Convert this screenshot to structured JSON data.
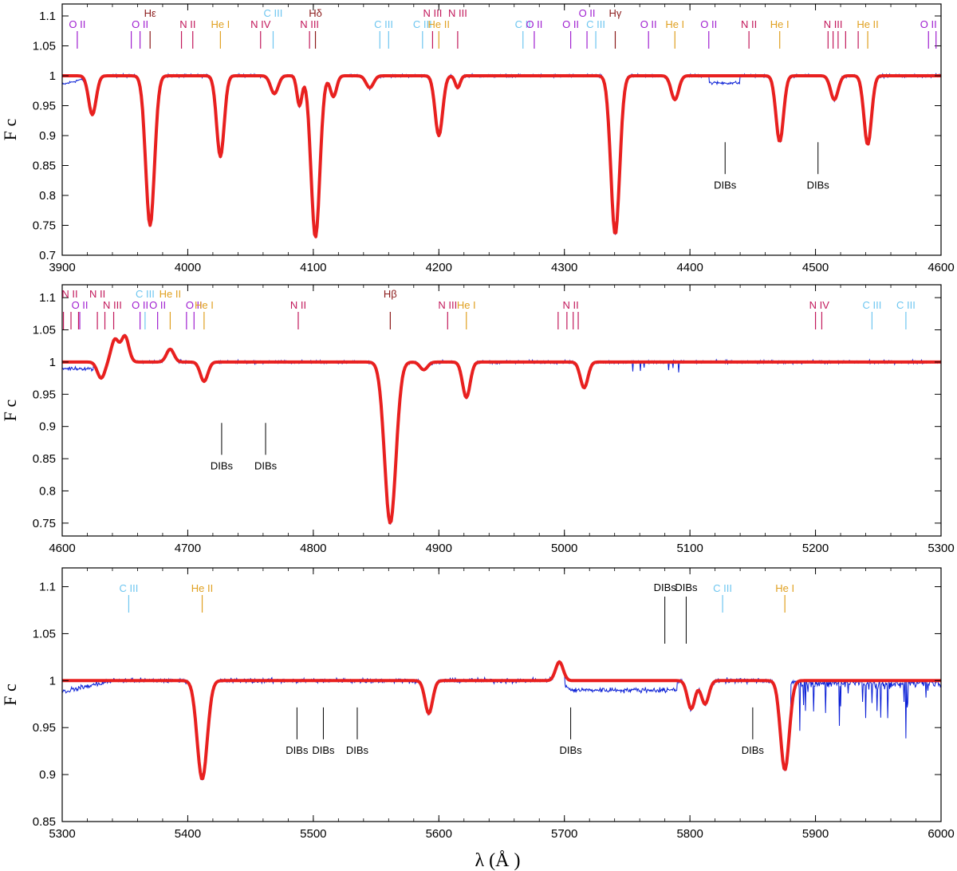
{
  "figure": {
    "xlabel": "λ (Å )",
    "ylabel": "F c",
    "colors": {
      "observed": "#0a1fd6",
      "model": "#e8201f",
      "frame": "#000000"
    }
  },
  "chart_data": [
    {
      "type": "line",
      "xlim": [
        3900,
        4600
      ],
      "ylim": [
        0.7,
        1.12
      ],
      "xticks": [
        3900,
        4000,
        4100,
        4200,
        4300,
        4400,
        4500,
        4600
      ],
      "yticks": [
        0.7,
        0.75,
        0.8,
        0.85,
        0.9,
        0.95,
        1,
        1.05,
        1.1
      ],
      "ylabel": "F c",
      "series": [
        {
          "name": "observed",
          "color": "#0a1fd6"
        },
        {
          "name": "model",
          "color": "#e8201f"
        }
      ],
      "lines": [
        {
          "center": 3924,
          "depth": 0.065,
          "width": 3
        },
        {
          "center": 3970,
          "depth": 0.25,
          "width": 3.5
        },
        {
          "center": 4026,
          "depth": 0.135,
          "width": 3
        },
        {
          "center": 4069,
          "depth": 0.03,
          "width": 3
        },
        {
          "center": 4089,
          "depth": 0.05,
          "width": 2
        },
        {
          "center": 4101.7,
          "depth": 0.27,
          "width": 3.5
        },
        {
          "center": 4116,
          "depth": 0.035,
          "width": 2.5
        },
        {
          "center": 4145,
          "depth": 0.02,
          "width": 3
        },
        {
          "center": 4200,
          "depth": 0.1,
          "width": 3
        },
        {
          "center": 4215,
          "depth": 0.02,
          "width": 2
        },
        {
          "center": 4340.5,
          "depth": 0.265,
          "width": 3.5
        },
        {
          "center": 4388,
          "depth": 0.04,
          "width": 3
        },
        {
          "center": 4471.5,
          "depth": 0.11,
          "width": 3
        },
        {
          "center": 4515,
          "depth": 0.04,
          "width": 3
        },
        {
          "center": 4541.6,
          "depth": 0.115,
          "width": 3
        }
      ],
      "ion_labels": [
        {
          "text": "O II",
          "x": 3912,
          "ticks": [
            3912
          ],
          "color": "#a020d0",
          "row": 1
        },
        {
          "text": "O II",
          "x": 3962,
          "ticks": [
            3955,
            3962
          ],
          "color": "#a020d0",
          "row": 1
        },
        {
          "text": "Hε",
          "x": 3970,
          "ticks": [
            3970
          ],
          "color": "#8b1a1a",
          "row": 0
        },
        {
          "text": "N II",
          "x": 4000,
          "ticks": [
            3995,
            4004
          ],
          "color": "#c2185b",
          "row": 1
        },
        {
          "text": "He I",
          "x": 4026,
          "ticks": [
            4026
          ],
          "color": "#e0a020",
          "row": 1
        },
        {
          "text": "N IV",
          "x": 4058,
          "ticks": [
            4058
          ],
          "color": "#c2185b",
          "row": 1
        },
        {
          "text": "C III",
          "x": 4068,
          "ticks": [
            4068
          ],
          "color": "#6ec6f0",
          "row": 0
        },
        {
          "text": "N III",
          "x": 4097,
          "ticks": [
            4097
          ],
          "color": "#c2185b",
          "row": 1
        },
        {
          "text": "Hδ",
          "x": 4101.7,
          "ticks": [
            4101.7
          ],
          "color": "#8b1a1a",
          "row": 0
        },
        {
          "text": "C III",
          "x": 4156,
          "ticks": [
            4153,
            4160
          ],
          "color": "#6ec6f0",
          "row": 1
        },
        {
          "text": "C III",
          "x": 4187,
          "ticks": [
            4187
          ],
          "color": "#6ec6f0",
          "row": 1
        },
        {
          "text": "N III",
          "x": 4195,
          "ticks": [
            4195
          ],
          "color": "#c2185b",
          "row": 0
        },
        {
          "text": "He II",
          "x": 4200,
          "ticks": [
            4200
          ],
          "color": "#e0a020",
          "row": 1
        },
        {
          "text": "N III",
          "x": 4215,
          "ticks": [
            4215
          ],
          "color": "#c2185b",
          "row": 0
        },
        {
          "text": "C II",
          "x": 4267,
          "ticks": [
            4267
          ],
          "color": "#6ec6f0",
          "row": 1
        },
        {
          "text": "O II",
          "x": 4276,
          "ticks": [
            4276
          ],
          "color": "#a020d0",
          "row": 1
        },
        {
          "text": "O II",
          "x": 4305,
          "ticks": [
            4305
          ],
          "color": "#a020d0",
          "row": 1
        },
        {
          "text": "O II",
          "x": 4318,
          "ticks": [
            4318
          ],
          "color": "#a020d0",
          "row": 0
        },
        {
          "text": "C III",
          "x": 4325,
          "ticks": [
            4325
          ],
          "color": "#6ec6f0",
          "row": 1
        },
        {
          "text": "Hγ",
          "x": 4340.5,
          "ticks": [
            4340.5
          ],
          "color": "#8b1a1a",
          "row": 0
        },
        {
          "text": "O II",
          "x": 4367,
          "ticks": [
            4367
          ],
          "color": "#a020d0",
          "row": 1
        },
        {
          "text": "He I",
          "x": 4388,
          "ticks": [
            4388
          ],
          "color": "#e0a020",
          "row": 1
        },
        {
          "text": "O II",
          "x": 4415,
          "ticks": [
            4415
          ],
          "color": "#a020d0",
          "row": 1
        },
        {
          "text": "N II",
          "x": 4447,
          "ticks": [
            4447
          ],
          "color": "#c2185b",
          "row": 1
        },
        {
          "text": "He I",
          "x": 4471.5,
          "ticks": [
            4471.5
          ],
          "color": "#e0a020",
          "row": 1
        },
        {
          "text": "N III",
          "x": 4514,
          "ticks": [
            4510,
            4514,
            4518,
            4524,
            4534
          ],
          "color": "#c2185b",
          "row": 1
        },
        {
          "text": "He II",
          "x": 4541.6,
          "ticks": [
            4541.6
          ],
          "color": "#e0a020",
          "row": 1
        },
        {
          "text": "O II",
          "x": 4590,
          "ticks": [
            4590,
            4596
          ],
          "color": "#a020d0",
          "row": 1
        }
      ],
      "dibs": [
        {
          "x": 4428,
          "text": "DIBs"
        },
        {
          "x": 4502,
          "text": "DIBs"
        }
      ]
    },
    {
      "type": "line",
      "xlim": [
        4600,
        5300
      ],
      "ylim": [
        0.73,
        1.12
      ],
      "xticks": [
        4600,
        4700,
        4800,
        4900,
        5000,
        5100,
        5200,
        5300
      ],
      "yticks": [
        0.75,
        0.8,
        0.85,
        0.9,
        0.95,
        1,
        1.05,
        1.1
      ],
      "ylabel": "F c",
      "series": [
        {
          "name": "observed",
          "color": "#0a1fd6"
        },
        {
          "name": "model",
          "color": "#e8201f"
        }
      ],
      "lines": [
        {
          "center": 4631,
          "depth": 0.025,
          "width": 3
        },
        {
          "center": 4642,
          "depth": -0.035,
          "width": 3
        },
        {
          "center": 4650,
          "depth": -0.04,
          "width": 3
        },
        {
          "center": 4686,
          "depth": -0.02,
          "width": 3
        },
        {
          "center": 4713,
          "depth": 0.03,
          "width": 3
        },
        {
          "center": 4861.3,
          "depth": 0.25,
          "width": 4.5
        },
        {
          "center": 4888,
          "depth": 0.012,
          "width": 3
        },
        {
          "center": 4921.9,
          "depth": 0.055,
          "width": 3
        },
        {
          "center": 5015.7,
          "depth": 0.04,
          "width": 3
        }
      ],
      "ion_labels": [
        {
          "text": "N II",
          "x": 4606,
          "ticks": [
            4601,
            4607,
            4613
          ],
          "color": "#c2185b",
          "row": 0
        },
        {
          "text": "O II",
          "x": 4614,
          "ticks": [
            4614
          ],
          "color": "#a020d0",
          "row": 1
        },
        {
          "text": "N II",
          "x": 4628,
          "ticks": [
            4628
          ],
          "color": "#c2185b",
          "row": 0
        },
        {
          "text": "N III",
          "x": 4640,
          "ticks": [
            4634,
            4641
          ],
          "color": "#c2185b",
          "row": 1
        },
        {
          "text": "O II",
          "x": 4662,
          "ticks": [
            4662
          ],
          "color": "#a020d0",
          "row": 1
        },
        {
          "text": "C III",
          "x": 4666,
          "ticks": [
            4666
          ],
          "color": "#6ec6f0",
          "row": 0
        },
        {
          "text": "O II",
          "x": 4676,
          "ticks": [
            4676
          ],
          "color": "#a020d0",
          "row": 1
        },
        {
          "text": "He II",
          "x": 4686,
          "ticks": [
            4686
          ],
          "color": "#e0a020",
          "row": 0
        },
        {
          "text": "O II",
          "x": 4705,
          "ticks": [
            4699,
            4705
          ],
          "color": "#a020d0",
          "row": 1
        },
        {
          "text": "He I",
          "x": 4713,
          "ticks": [
            4713
          ],
          "color": "#e0a020",
          "row": 1
        },
        {
          "text": "N II",
          "x": 4788,
          "ticks": [
            4788
          ],
          "color": "#c2185b",
          "row": 1
        },
        {
          "text": "Hβ",
          "x": 4861.3,
          "ticks": [
            4861.3
          ],
          "color": "#8b1a1a",
          "row": 0
        },
        {
          "text": "N III",
          "x": 4907,
          "ticks": [
            4907
          ],
          "color": "#c2185b",
          "row": 1
        },
        {
          "text": "He I",
          "x": 4921.9,
          "ticks": [
            4921.9
          ],
          "color": "#e0a020",
          "row": 1
        },
        {
          "text": "N II",
          "x": 5005,
          "ticks": [
            4995,
            5002,
            5007,
            5011
          ],
          "color": "#c2185b",
          "row": 1
        },
        {
          "text": "N IV",
          "x": 5203,
          "ticks": [
            5200,
            5205
          ],
          "color": "#c2185b",
          "row": 1
        },
        {
          "text": "C III",
          "x": 5245,
          "ticks": [
            5245
          ],
          "color": "#6ec6f0",
          "row": 1
        },
        {
          "text": "C III",
          "x": 5272,
          "ticks": [
            5272
          ],
          "color": "#6ec6f0",
          "row": 1
        }
      ],
      "dibs": [
        {
          "x": 4727,
          "text": "DIBs"
        },
        {
          "x": 4762,
          "text": "DIBs"
        }
      ]
    },
    {
      "type": "line",
      "xlim": [
        5300,
        6000
      ],
      "ylim": [
        0.85,
        1.12
      ],
      "xticks": [
        5300,
        5400,
        5500,
        5600,
        5700,
        5800,
        5900,
        6000
      ],
      "yticks": [
        0.85,
        0.9,
        0.95,
        1,
        1.05,
        1.1
      ],
      "ylabel": "F c",
      "xlabel": "λ (Å )",
      "series": [
        {
          "name": "observed",
          "color": "#0a1fd6"
        },
        {
          "name": "model",
          "color": "#e8201f"
        }
      ],
      "lines": [
        {
          "center": 5411.5,
          "depth": 0.105,
          "width": 4
        },
        {
          "center": 5592,
          "depth": 0.035,
          "width": 3
        },
        {
          "center": 5696,
          "depth": -0.02,
          "width": 3
        },
        {
          "center": 5801,
          "depth": 0.03,
          "width": 3
        },
        {
          "center": 5812,
          "depth": 0.025,
          "width": 3
        },
        {
          "center": 5875.6,
          "depth": 0.095,
          "width": 3.5
        }
      ],
      "ion_labels": [
        {
          "text": "C III",
          "x": 5353,
          "ticks": [
            5353
          ],
          "color": "#6ec6f0",
          "row": 1
        },
        {
          "text": "He II",
          "x": 5411.5,
          "ticks": [
            5411.5
          ],
          "color": "#e0a020",
          "row": 1
        },
        {
          "text": "C III",
          "x": 5826,
          "ticks": [
            5826
          ],
          "color": "#6ec6f0",
          "row": 1
        },
        {
          "text": "He I",
          "x": 5875.6,
          "ticks": [
            5875.6
          ],
          "color": "#e0a020",
          "row": 1
        }
      ],
      "dib_top": [
        {
          "x": 5780,
          "text": "DIBs"
        },
        {
          "x": 5797,
          "text": "DIBs"
        }
      ],
      "dibs": [
        {
          "x": 5487,
          "text": "DIBs"
        },
        {
          "x": 5508,
          "text": "DIBs"
        },
        {
          "x": 5535,
          "text": "DIBs"
        },
        {
          "x": 5705,
          "text": "DIBs"
        },
        {
          "x": 5850,
          "text": "DIBs"
        }
      ]
    }
  ]
}
